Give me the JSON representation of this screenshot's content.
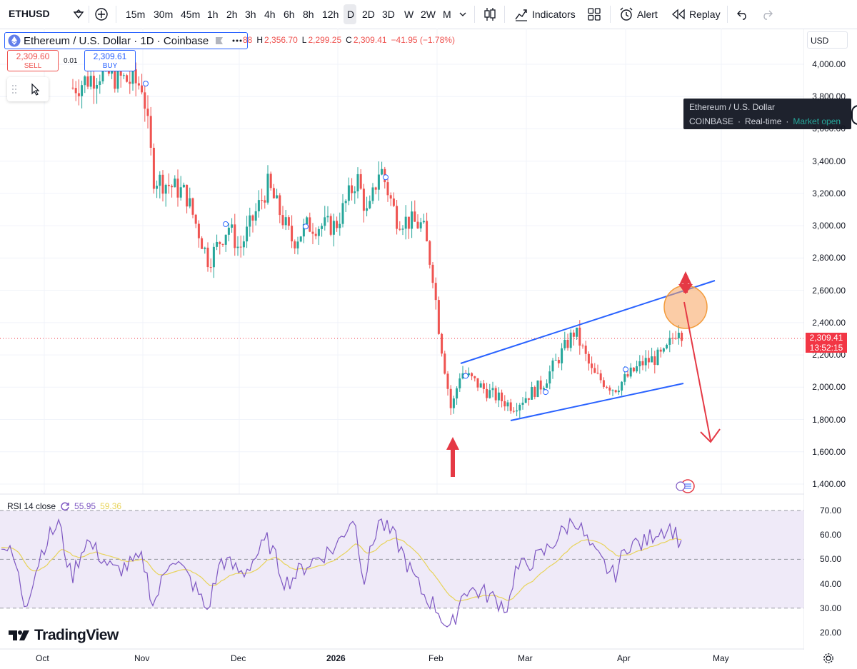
{
  "toolbar": {
    "symbol": "ETHUSD",
    "timeframes": [
      "15m",
      "30m",
      "45m",
      "1h",
      "2h",
      "3h",
      "4h",
      "6h",
      "8h",
      "12h",
      "D",
      "2D",
      "3D",
      "W",
      "2W",
      "M"
    ],
    "active_timeframe": "D",
    "indicators_label": "Indicators",
    "alert_label": "Alert",
    "replay_label": "Replay"
  },
  "legend": {
    "title": "Ethereum / U.S. Dollar · 1D · Coinbase",
    "ohlc_partial": "88",
    "high_label": "H",
    "high": "2,356.70",
    "low_label": "L",
    "low": "2,299.25",
    "close_label": "C",
    "close": "2,309.41",
    "change": "−41.95 (−1.78%)",
    "sell_price": "2,309.60",
    "sell_label": "SELL",
    "spread": "0.01",
    "buy_price": "2,309.61",
    "buy_label": "BUY"
  },
  "tooltip": {
    "line1": "Ethereum / U.S. Dollar",
    "exchange": "COINBASE",
    "realtime": "Real-time",
    "market": "Market open"
  },
  "price_axis": {
    "currency": "USD",
    "ticks": [
      "4,000.00",
      "3,800.00",
      "3,600.00",
      "3,400.00",
      "3,200.00",
      "3,000.00",
      "2,800.00",
      "2,600.00",
      "2,400.00",
      "2,200.00",
      "2,000.00",
      "1,800.00",
      "1,600.00",
      "1,400.00"
    ],
    "current_price": "2,309.41",
    "countdown": "13:52:15"
  },
  "rsi": {
    "label": "RSI 14 close",
    "value": "55.95",
    "ma_value": "59.36",
    "ticks": [
      "70.00",
      "60.00",
      "50.00",
      "40.00",
      "30.00",
      "20.00"
    ]
  },
  "time_axis": [
    "Oct",
    "Nov",
    "Dec",
    "2026",
    "Feb",
    "Mar",
    "Apr",
    "May"
  ],
  "brand": "TradingView",
  "colors": {
    "up": "#26a69a",
    "down": "#ef5350",
    "channel": "#2962ff",
    "arrow": "#e53945",
    "rsi_line": "#7e57c2",
    "rsi_ma": "#e8d35a",
    "rsi_band": "#efeaf8",
    "highlight_circle": "#f7a35c"
  },
  "chart_data": {
    "type": "candlestick",
    "symbol": "ETHUSD",
    "interval": "1D",
    "ylim": [
      1400,
      4100
    ],
    "approx_closes": [
      {
        "date": "Oct",
        "price": 3950
      },
      {
        "date": "Nov",
        "price": 3850
      },
      {
        "date": "Nov mid",
        "price": 3200
      },
      {
        "date": "Nov late",
        "price": 2800
      },
      {
        "date": "Dec",
        "price": 3050
      },
      {
        "date": "Dec mid",
        "price": 2900
      },
      {
        "date": "2026",
        "price": 3100
      },
      {
        "date": "Jan mid",
        "price": 3300
      },
      {
        "date": "Jan late",
        "price": 2850
      },
      {
        "date": "Feb",
        "price": 1900
      },
      {
        "date": "Feb mid",
        "price": 2000
      },
      {
        "date": "Mar",
        "price": 1950
      },
      {
        "date": "Mar mid",
        "price": 2350
      },
      {
        "date": "Mar late",
        "price": 2000
      },
      {
        "date": "Apr",
        "price": 2150
      },
      {
        "date": "Apr mid",
        "price": 2309
      }
    ],
    "rsi_ylim": [
      15,
      72
    ],
    "rsi_levels": [
      70,
      50,
      30
    ]
  }
}
